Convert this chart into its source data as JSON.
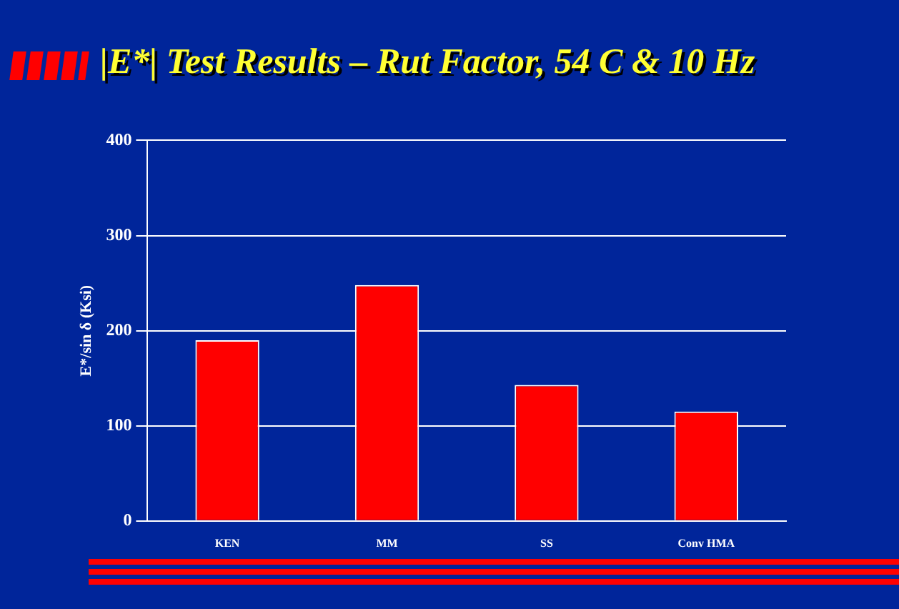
{
  "chart_data": {
    "type": "bar",
    "title": "|E*| Test Results – Rut Factor, 54 C & 10 Hz",
    "ylabel": "E*/sin δ (Ksi)",
    "categories": [
      "KEN",
      "MM",
      "SS",
      "Conv HMA"
    ],
    "values": [
      190,
      248,
      143,
      115
    ],
    "color": "#ff0000",
    "ylim": [
      0,
      400
    ],
    "yticks": [
      0,
      100,
      200,
      300,
      400
    ],
    "grid": "y"
  }
}
